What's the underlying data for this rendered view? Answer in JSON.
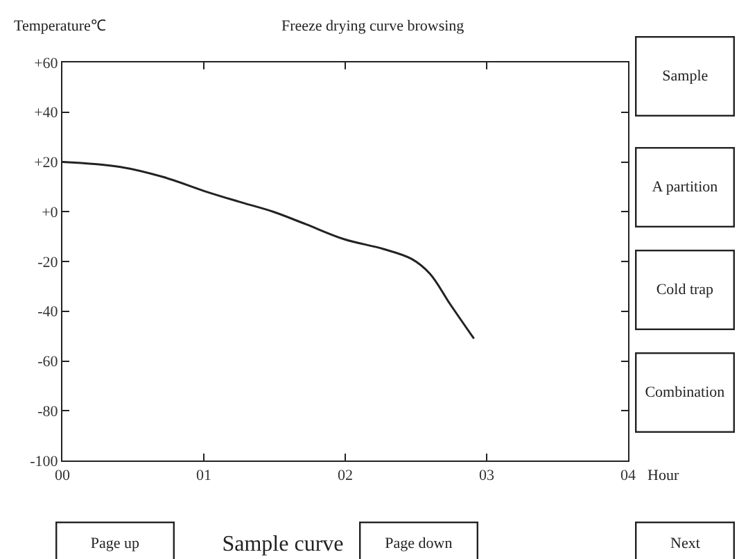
{
  "chart_data": {
    "type": "line",
    "title": "Freeze drying curve browsing",
    "ylabel": "Temperature℃",
    "xlabel": "Hour",
    "x": [
      0,
      0.41,
      0.71,
      1.02,
      1.25,
      1.49,
      1.72,
      1.99,
      2.27,
      2.47,
      2.6,
      2.74,
      2.91
    ],
    "series": [
      {
        "color": "#222222",
        "values": [
          20,
          18,
          14,
          8,
          4,
          0,
          -5,
          -11,
          -15,
          -19,
          -25,
          -37,
          -51
        ]
      }
    ],
    "xlim": [
      0,
      4
    ],
    "xticks": [
      {
        "value": 0,
        "label": "00"
      },
      {
        "value": 1,
        "label": "01"
      },
      {
        "value": 2,
        "label": "02"
      },
      {
        "value": 3,
        "label": "03"
      },
      {
        "value": 4,
        "label": "04"
      }
    ],
    "ylim": [
      -100,
      60
    ],
    "yticks": [
      {
        "value": -100,
        "label": "-100"
      },
      {
        "value": -80,
        "label": "-80"
      },
      {
        "value": -60,
        "label": "-60"
      },
      {
        "value": -40,
        "label": "-40"
      },
      {
        "value": -20,
        "label": "-20"
      },
      {
        "value": 0,
        "label": "+0"
      },
      {
        "value": 20,
        "label": "+20"
      },
      {
        "value": 40,
        "label": "+40"
      },
      {
        "value": 60,
        "label": "+60"
      }
    ],
    "legend": false,
    "marker": "none",
    "line_style": "solid",
    "annotations": [
      "Sample",
      "A partition",
      "Cold trap",
      "Combination",
      "Page up",
      "Sample curve",
      "Page down",
      "Next"
    ]
  }
}
